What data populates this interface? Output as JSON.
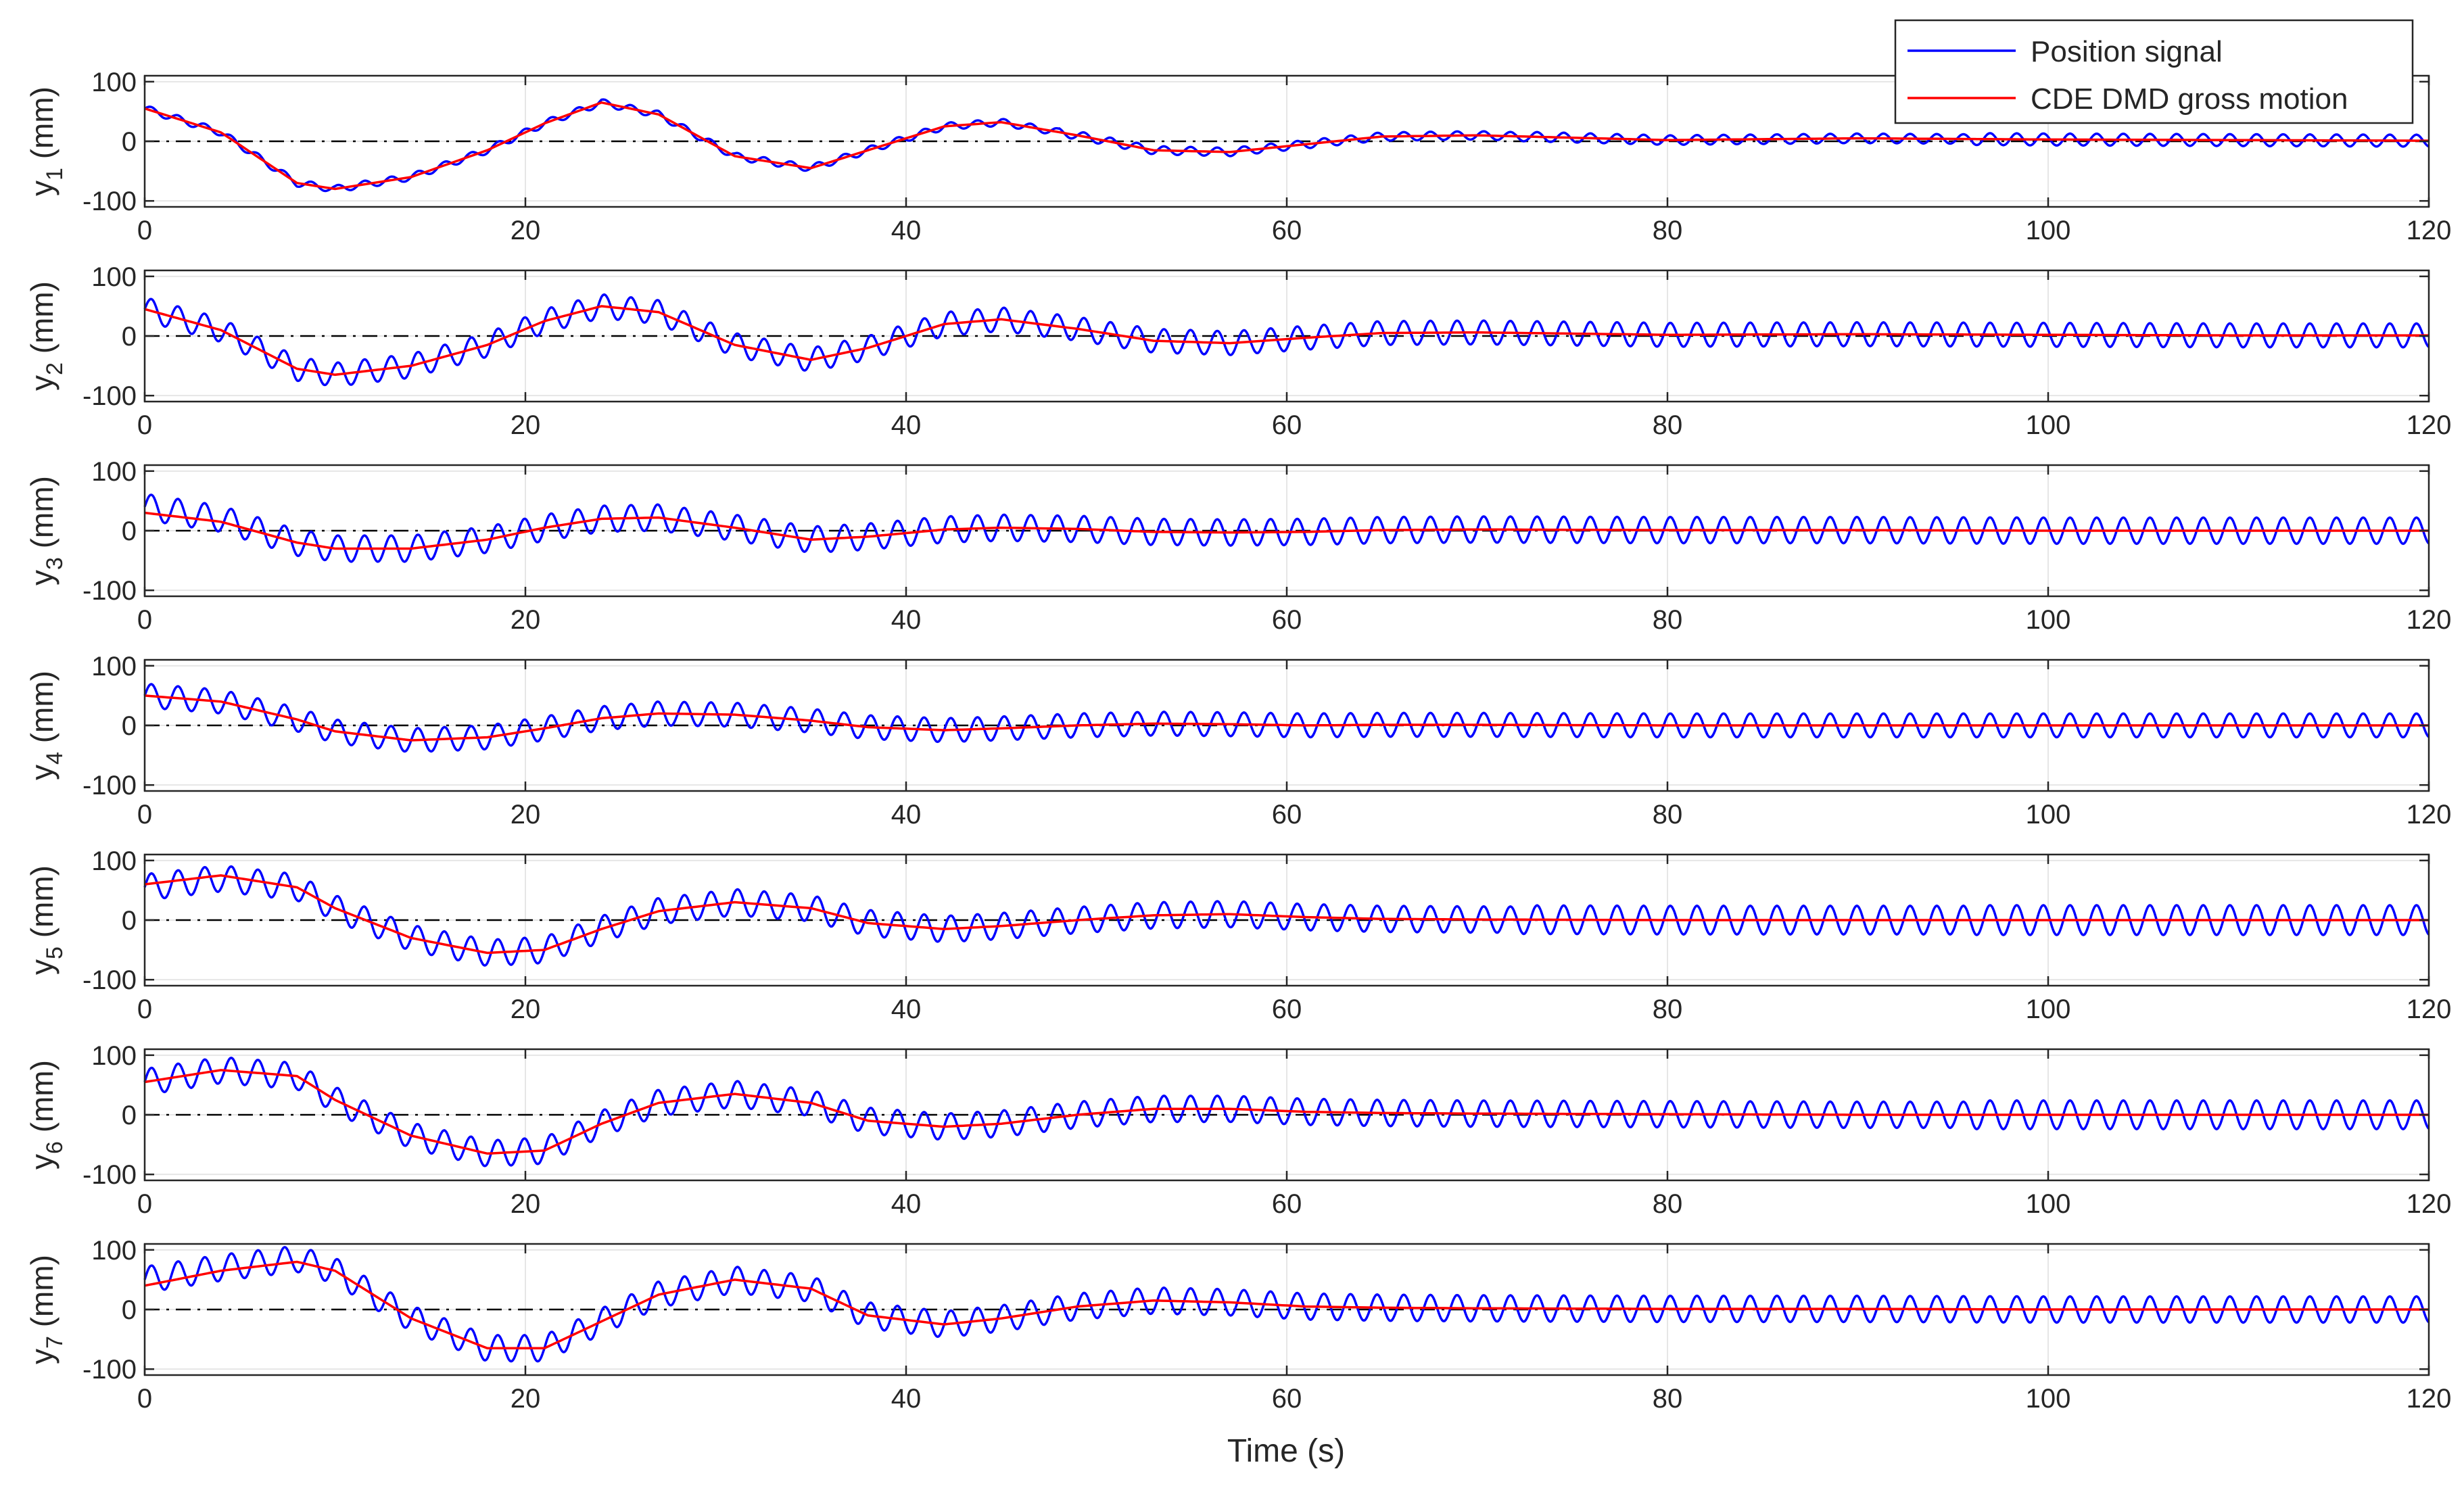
{
  "legend": {
    "placement": "top-right",
    "entries": [
      {
        "label": "Position signal",
        "color": "#0000ff"
      },
      {
        "label": "CDE DMD gross motion",
        "color": "#ff0000"
      }
    ]
  },
  "xlabel": "Time (s)",
  "colors": {
    "position": "#0000ff",
    "gross": "#ff0000",
    "zero_line": "#000000",
    "grid": "#e6e6e6",
    "axes": "#262626"
  },
  "chart_data": [
    {
      "type": "line",
      "ylabel_base": "y",
      "ylabel_sub": "1",
      "ylabel_unit": "(mm)",
      "xlim": [
        0,
        120
      ],
      "ylim": [
        -110,
        110
      ],
      "xticks": [
        "0",
        "20",
        "40",
        "60",
        "80",
        "100",
        "120"
      ],
      "yticks": [
        "100",
        "0",
        "-100"
      ],
      "grid": true,
      "series": [
        {
          "name": "CDE DMD gross motion",
          "x": [
            0,
            4,
            8,
            10,
            14,
            18,
            21,
            24,
            27,
            31,
            35,
            38,
            42,
            45,
            49,
            53,
            57,
            61,
            65,
            70,
            80,
            90,
            100,
            110,
            120
          ],
          "y": [
            55,
            15,
            -70,
            -80,
            -60,
            -15,
            30,
            65,
            45,
            -25,
            -45,
            -15,
            25,
            32,
            10,
            -15,
            -18,
            -5,
            8,
            10,
            2,
            5,
            3,
            2,
            1
          ]
        },
        {
          "name": "Position signal",
          "x": [
            0,
            4,
            8,
            10,
            14,
            18,
            21,
            24,
            27,
            31,
            35,
            38,
            42,
            45,
            49,
            53,
            57,
            61,
            65,
            70,
            80,
            90,
            100,
            110,
            120
          ],
          "y": [
            55,
            15,
            -70,
            -80,
            -60,
            -15,
            30,
            65,
            45,
            -25,
            -45,
            -15,
            25,
            32,
            10,
            -15,
            -18,
            -5,
            8,
            10,
            2,
            5,
            3,
            2,
            1
          ],
          "oscillation": {
            "period": 1.4,
            "amplitude": [
              6,
              6,
              7,
              8,
              10
            ]
          }
        }
      ]
    },
    {
      "type": "line",
      "ylabel_base": "y",
      "ylabel_sub": "2",
      "ylabel_unit": "(mm)",
      "xlim": [
        0,
        120
      ],
      "ylim": [
        -110,
        110
      ],
      "xticks": [
        "0",
        "20",
        "40",
        "60",
        "80",
        "100",
        "120"
      ],
      "yticks": [
        "100",
        "0",
        "-100"
      ],
      "grid": true,
      "series": [
        {
          "name": "CDE DMD gross motion",
          "x": [
            0,
            4,
            8,
            10,
            14,
            18,
            21,
            24,
            27,
            31,
            35,
            38,
            42,
            45,
            49,
            53,
            57,
            61,
            65,
            70,
            80,
            90,
            100,
            110,
            120
          ],
          "y": [
            45,
            10,
            -55,
            -65,
            -50,
            -15,
            25,
            50,
            40,
            -15,
            -40,
            -20,
            20,
            28,
            12,
            -8,
            -12,
            -3,
            5,
            6,
            2,
            3,
            2,
            1,
            1
          ]
        },
        {
          "name": "Position signal",
          "x": [
            0,
            4,
            8,
            10,
            14,
            18,
            21,
            24,
            27,
            31,
            35,
            38,
            42,
            45,
            49,
            53,
            57,
            61,
            65,
            70,
            80,
            90,
            100,
            110,
            120
          ],
          "y": [
            45,
            10,
            -55,
            -65,
            -50,
            -15,
            25,
            50,
            40,
            -15,
            -40,
            -20,
            20,
            28,
            12,
            -8,
            -12,
            -3,
            5,
            6,
            2,
            3,
            2,
            1,
            1
          ],
          "oscillation": {
            "period": 1.4,
            "amplitude": [
              20,
              20,
              20,
              20,
              20
            ]
          }
        }
      ]
    },
    {
      "type": "line",
      "ylabel_base": "y",
      "ylabel_sub": "3",
      "ylabel_unit": "(mm)",
      "xlim": [
        0,
        120
      ],
      "ylim": [
        -110,
        110
      ],
      "xticks": [
        "0",
        "20",
        "40",
        "60",
        "80",
        "100",
        "120"
      ],
      "yticks": [
        "100",
        "0",
        "-100"
      ],
      "grid": true,
      "series": [
        {
          "name": "CDE DMD gross motion",
          "x": [
            0,
            4,
            8,
            10,
            14,
            18,
            21,
            24,
            27,
            31,
            35,
            38,
            42,
            45,
            49,
            53,
            57,
            61,
            65,
            70,
            80,
            90,
            100,
            110,
            120
          ],
          "y": [
            30,
            15,
            -20,
            -30,
            -30,
            -15,
            5,
            20,
            22,
            5,
            -15,
            -10,
            2,
            5,
            3,
            -2,
            -3,
            -2,
            1,
            2,
            1,
            1,
            0,
            0,
            0
          ]
        },
        {
          "name": "Position signal",
          "x": [
            0,
            4,
            8,
            10,
            14,
            18,
            21,
            24,
            27,
            31,
            35,
            38,
            42,
            45,
            49,
            53,
            57,
            61,
            65,
            70,
            80,
            90,
            100,
            110,
            120
          ],
          "y": [
            40,
            20,
            -20,
            -30,
            -30,
            -15,
            5,
            20,
            22,
            5,
            -15,
            -10,
            2,
            5,
            3,
            -2,
            -3,
            -2,
            1,
            2,
            1,
            1,
            0,
            0,
            0
          ],
          "oscillation": {
            "period": 1.4,
            "amplitude": [
              22,
              22,
              22,
              22,
              22
            ]
          }
        }
      ]
    },
    {
      "type": "line",
      "ylabel_base": "y",
      "ylabel_sub": "4",
      "ylabel_unit": "(mm)",
      "xlim": [
        0,
        120
      ],
      "ylim": [
        -110,
        110
      ],
      "xticks": [
        "0",
        "20",
        "40",
        "60",
        "80",
        "100",
        "120"
      ],
      "yticks": [
        "100",
        "0",
        "-100"
      ],
      "grid": true,
      "series": [
        {
          "name": "CDE DMD gross motion",
          "x": [
            0,
            4,
            8,
            10,
            14,
            18,
            21,
            24,
            27,
            31,
            35,
            38,
            42,
            45,
            49,
            53,
            57,
            61,
            65,
            70,
            80,
            90,
            100,
            110,
            120
          ],
          "y": [
            50,
            40,
            10,
            -10,
            -25,
            -20,
            -5,
            12,
            20,
            18,
            8,
            -3,
            -8,
            -5,
            0,
            3,
            2,
            0,
            1,
            1,
            0,
            0,
            0,
            0,
            0
          ]
        },
        {
          "name": "Position signal",
          "x": [
            0,
            4,
            8,
            10,
            14,
            18,
            21,
            24,
            27,
            31,
            35,
            38,
            42,
            45,
            49,
            53,
            57,
            61,
            65,
            70,
            80,
            90,
            100,
            110,
            120
          ],
          "y": [
            50,
            40,
            10,
            -10,
            -25,
            -20,
            -5,
            12,
            20,
            18,
            8,
            -3,
            -8,
            -5,
            0,
            3,
            2,
            0,
            1,
            1,
            0,
            0,
            0,
            0,
            0
          ],
          "oscillation": {
            "period": 1.4,
            "amplitude": [
              20,
              20,
              20,
              20,
              20
            ]
          }
        }
      ]
    },
    {
      "type": "line",
      "ylabel_base": "y",
      "ylabel_sub": "5",
      "ylabel_unit": "(mm)",
      "xlim": [
        0,
        120
      ],
      "ylim": [
        -110,
        110
      ],
      "xticks": [
        "0",
        "20",
        "40",
        "60",
        "80",
        "100",
        "120"
      ],
      "yticks": [
        "100",
        "0",
        "-100"
      ],
      "grid": true,
      "series": [
        {
          "name": "CDE DMD gross motion",
          "x": [
            0,
            4,
            8,
            10,
            14,
            18,
            21,
            24,
            27,
            31,
            35,
            38,
            42,
            45,
            49,
            53,
            57,
            61,
            65,
            70,
            80,
            90,
            100,
            110,
            120
          ],
          "y": [
            60,
            75,
            55,
            20,
            -30,
            -55,
            -50,
            -15,
            15,
            30,
            20,
            -5,
            -15,
            -10,
            0,
            8,
            10,
            5,
            2,
            1,
            0,
            0,
            0,
            0,
            0
          ]
        },
        {
          "name": "Position signal",
          "x": [
            0,
            4,
            8,
            10,
            14,
            18,
            21,
            24,
            27,
            31,
            35,
            38,
            42,
            45,
            49,
            53,
            57,
            61,
            65,
            70,
            80,
            90,
            100,
            110,
            120
          ],
          "y": [
            55,
            70,
            55,
            20,
            -30,
            -55,
            -50,
            -15,
            15,
            30,
            20,
            -5,
            -15,
            -10,
            0,
            8,
            10,
            5,
            2,
            1,
            0,
            0,
            0,
            0,
            0
          ],
          "oscillation": {
            "period": 1.4,
            "amplitude": [
              22,
              22,
              22,
              24,
              25
            ]
          }
        }
      ]
    },
    {
      "type": "line",
      "ylabel_base": "y",
      "ylabel_sub": "6",
      "ylabel_unit": "(mm)",
      "xlim": [
        0,
        120
      ],
      "ylim": [
        -110,
        110
      ],
      "xticks": [
        "0",
        "20",
        "40",
        "60",
        "80",
        "100",
        "120"
      ],
      "yticks": [
        "100",
        "0",
        "-100"
      ],
      "grid": true,
      "series": [
        {
          "name": "CDE DMD gross motion",
          "x": [
            0,
            4,
            8,
            10,
            14,
            18,
            21,
            24,
            27,
            31,
            35,
            38,
            42,
            45,
            49,
            53,
            57,
            61,
            65,
            70,
            80,
            90,
            100,
            110,
            120
          ],
          "y": [
            55,
            75,
            65,
            25,
            -35,
            -65,
            -60,
            -15,
            20,
            35,
            20,
            -10,
            -20,
            -15,
            0,
            10,
            10,
            5,
            3,
            2,
            1,
            0,
            0,
            0,
            0
          ]
        },
        {
          "name": "Position signal",
          "x": [
            0,
            4,
            8,
            10,
            14,
            18,
            21,
            24,
            27,
            31,
            35,
            38,
            42,
            45,
            49,
            53,
            57,
            61,
            65,
            70,
            80,
            90,
            100,
            110,
            120
          ],
          "y": [
            55,
            75,
            65,
            25,
            -35,
            -65,
            -60,
            -15,
            20,
            35,
            20,
            -10,
            -20,
            -15,
            0,
            10,
            10,
            5,
            3,
            2,
            1,
            0,
            0,
            0,
            0
          ],
          "oscillation": {
            "period": 1.4,
            "amplitude": [
              22,
              22,
              22,
              22,
              24
            ]
          }
        }
      ]
    },
    {
      "type": "line",
      "ylabel_base": "y",
      "ylabel_sub": "7",
      "ylabel_unit": "(mm)",
      "xlim": [
        0,
        120
      ],
      "ylim": [
        -110,
        110
      ],
      "xticks": [
        "0",
        "20",
        "40",
        "60",
        "80",
        "100",
        "120"
      ],
      "yticks": [
        "100",
        "0",
        "-100"
      ],
      "grid": true,
      "series": [
        {
          "name": "CDE DMD gross motion",
          "x": [
            0,
            4,
            8,
            10,
            14,
            18,
            21,
            24,
            27,
            31,
            35,
            38,
            42,
            45,
            49,
            53,
            57,
            61,
            65,
            70,
            80,
            90,
            100,
            110,
            120
          ],
          "y": [
            40,
            65,
            80,
            65,
            -15,
            -65,
            -65,
            -20,
            25,
            50,
            35,
            -10,
            -25,
            -15,
            5,
            15,
            12,
            5,
            3,
            2,
            1,
            1,
            0,
            0,
            0
          ]
        },
        {
          "name": "Position signal",
          "x": [
            0,
            4,
            8,
            10,
            14,
            18,
            21,
            24,
            27,
            31,
            35,
            38,
            42,
            45,
            49,
            53,
            57,
            61,
            65,
            70,
            80,
            90,
            100,
            110,
            120
          ],
          "y": [
            50,
            70,
            85,
            65,
            -15,
            -65,
            -65,
            -20,
            25,
            50,
            35,
            -10,
            -25,
            -15,
            5,
            15,
            12,
            5,
            3,
            2,
            1,
            1,
            0,
            0,
            0
          ],
          "oscillation": {
            "period": 1.4,
            "amplitude": [
              22,
              22,
              22,
              22,
              22
            ]
          }
        }
      ]
    }
  ]
}
